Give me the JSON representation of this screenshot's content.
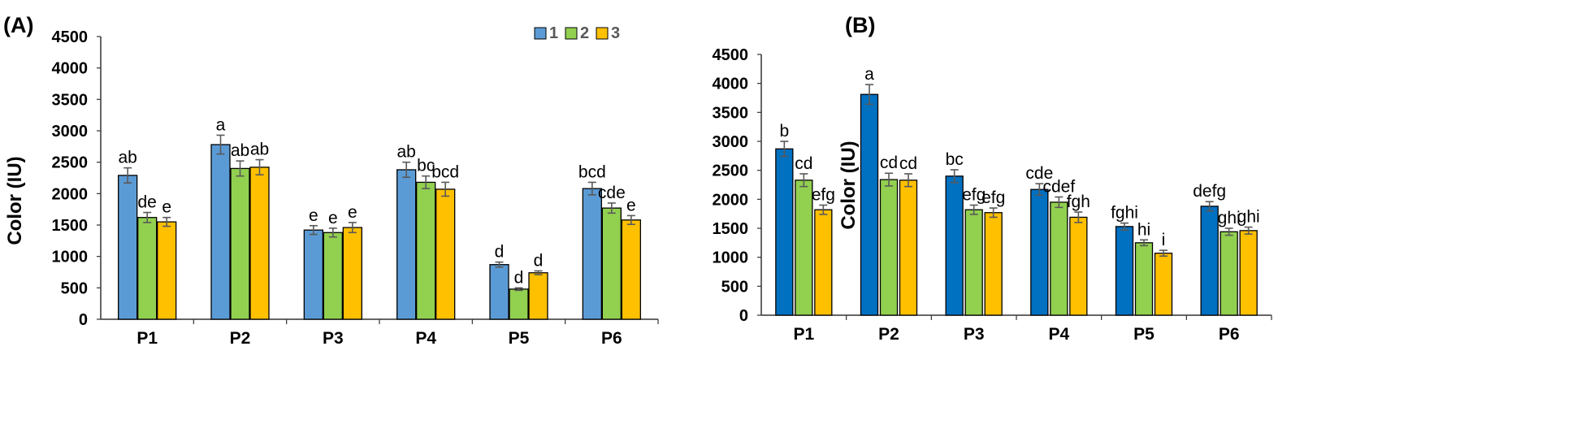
{
  "chart_data": [
    {
      "type": "bar",
      "panel_label": "(A)",
      "categories": [
        "P1",
        "P2",
        "P3",
        "P4",
        "P5",
        "P6"
      ],
      "ylabel": "Color (IU)",
      "xlabel": "",
      "ylim": [
        0,
        4500
      ],
      "yticks": [
        0,
        500,
        1000,
        1500,
        2000,
        2500,
        3000,
        3500,
        4000,
        4500
      ],
      "grid": false,
      "legend": {
        "position": "top-right",
        "labels": [
          "1",
          "2",
          "3"
        ]
      },
      "series": [
        {
          "name": "1",
          "color": "#5B9BD5",
          "values": [
            2290,
            2780,
            1420,
            2380,
            870,
            2080
          ],
          "errors": [
            120,
            150,
            70,
            120,
            40,
            100
          ],
          "letters": [
            "ab",
            "a",
            "e",
            "ab",
            "d",
            "bcd"
          ],
          "letter_colors": [
            "#000000",
            "#000000",
            "#000000",
            "#000000",
            "#000000",
            "#000000"
          ]
        },
        {
          "name": "2",
          "color": "#92D050",
          "values": [
            1620,
            2400,
            1380,
            2180,
            480,
            1770
          ],
          "errors": [
            80,
            120,
            70,
            100,
            20,
            80
          ],
          "letters": [
            "de",
            "ab",
            "e",
            "bc",
            "d",
            "cde"
          ],
          "letter_colors": [
            "#000000",
            "#000000",
            "#000000",
            "#000000",
            "#000000",
            "#000000"
          ]
        },
        {
          "name": "3",
          "color": "#FFC000",
          "values": [
            1550,
            2420,
            1460,
            2070,
            740,
            1580
          ],
          "errors": [
            70,
            120,
            80,
            110,
            30,
            70
          ],
          "letters": [
            "e",
            "ab",
            "e",
            "bcd",
            "d",
            "e"
          ],
          "letter_colors": [
            "#000000",
            "#000000",
            "#000000",
            "#000000",
            "#000000",
            "#000000"
          ]
        }
      ]
    },
    {
      "type": "bar",
      "panel_label": "(B)",
      "categories": [
        "P1",
        "P2",
        "P3",
        "P4",
        "P5",
        "P6"
      ],
      "ylabel": "Color (IU)",
      "xlabel": "",
      "ylim": [
        0,
        4500
      ],
      "yticks": [
        0,
        500,
        1000,
        1500,
        2000,
        2500,
        3000,
        3500,
        4000,
        4500
      ],
      "grid": false,
      "legend": null,
      "series": [
        {
          "name": "1",
          "color": "#0070C0",
          "values": [
            2870,
            3810,
            2400,
            2170,
            1530,
            1880
          ],
          "errors": [
            130,
            170,
            110,
            100,
            60,
            80
          ],
          "letters": [
            "b",
            "a",
            "bc",
            "cde",
            "fghi",
            "defg"
          ],
          "letter_colors": [
            "#000000",
            "#000000",
            "#000000",
            "#000000",
            "#000000",
            "#000000"
          ]
        },
        {
          "name": "2",
          "color": "#92D050",
          "values": [
            2330,
            2340,
            1820,
            1950,
            1250,
            1440
          ],
          "errors": [
            110,
            110,
            80,
            90,
            50,
            60
          ],
          "letters": [
            "cd",
            "cd",
            "efg",
            "cdef",
            "hi",
            "ghi"
          ],
          "letter_colors": [
            "#000000",
            "#000000",
            "#000000",
            "#000000",
            "#000000",
            "#000000"
          ]
        },
        {
          "name": "3",
          "color": "#FFC000",
          "values": [
            1820,
            2330,
            1770,
            1690,
            1070,
            1460
          ],
          "errors": [
            80,
            110,
            80,
            90,
            50,
            60
          ],
          "letters": [
            "efg",
            "cd",
            "efg",
            "fgh",
            "i",
            "ghi"
          ],
          "letter_colors": [
            "#595959",
            "#595959",
            "#595959",
            "#595959",
            "#000000",
            "#595959"
          ]
        }
      ]
    }
  ]
}
